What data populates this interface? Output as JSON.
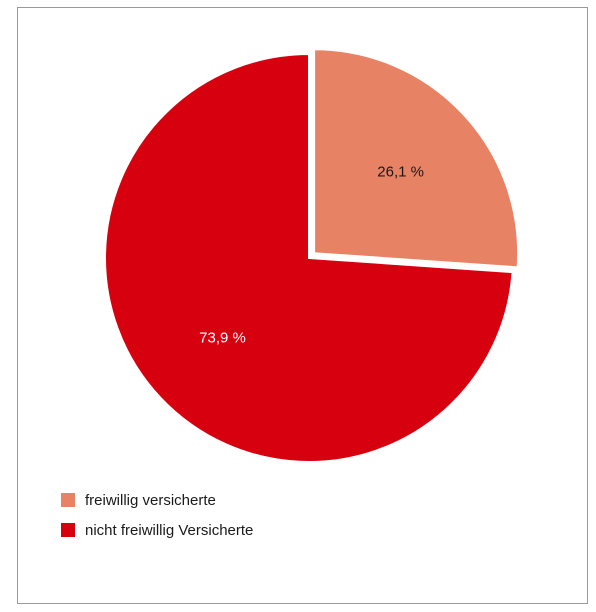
{
  "chart_data": {
    "type": "pie",
    "slices": [
      {
        "name": "freiwillig versicherte",
        "value": 26.1,
        "label": "26,1 %",
        "color": "#e88264",
        "label_color": "#1a1a1a",
        "exploded": true
      },
      {
        "name": "nicht freiwillig Versicherte",
        "value": 73.9,
        "label": "73,9 %",
        "color": "#d7000f",
        "label_color": "#ffffff",
        "exploded": false
      }
    ],
    "legend_position": "bottom-left"
  }
}
